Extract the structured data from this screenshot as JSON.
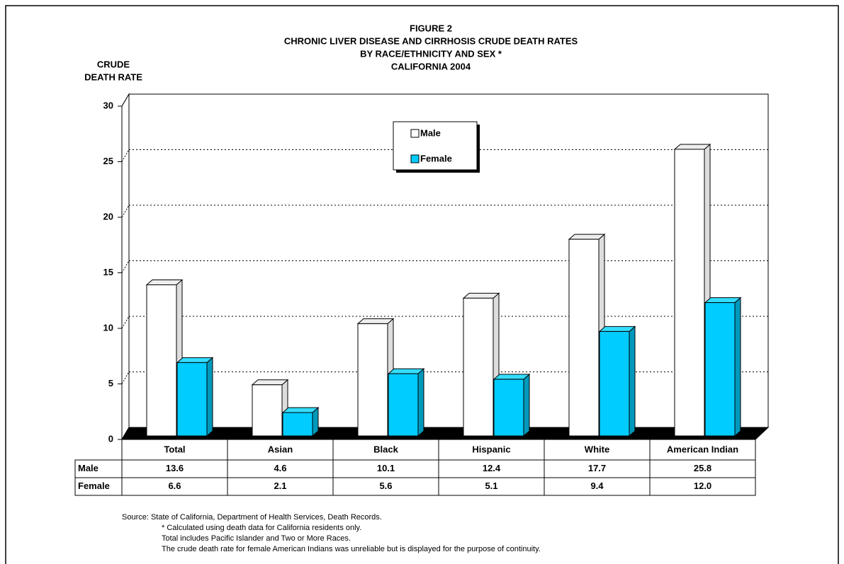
{
  "chart_data": {
    "type": "bar",
    "title": [
      "FIGURE 2",
      "CHRONIC LIVER DISEASE AND CIRRHOSIS CRUDE DEATH RATES",
      "BY RACE/ETHNICITY AND SEX *",
      "CALIFORNIA 2004"
    ],
    "ylabel": [
      "CRUDE",
      "DEATH RATE"
    ],
    "categories": [
      "Total",
      "Asian",
      "Black",
      "Hispanic",
      "White",
      "American Indian"
    ],
    "series": [
      {
        "name": "Male",
        "color": "#ffffff",
        "values": [
          13.6,
          4.6,
          10.1,
          12.4,
          17.7,
          25.8
        ],
        "value_labels": [
          "13.6",
          "4.6",
          "10.1",
          "12.4",
          "17.7",
          "25.8"
        ]
      },
      {
        "name": "Female",
        "color": "#00ccff",
        "values": [
          6.6,
          2.1,
          5.6,
          5.1,
          9.4,
          12.0
        ],
        "value_labels": [
          "6.6",
          "2.1",
          "5.6",
          "5.1",
          "9.4",
          "12.0"
        ]
      }
    ],
    "ylim": [
      0,
      30
    ],
    "yticks": [
      0,
      5,
      10,
      15,
      20,
      25,
      30
    ],
    "grid": true,
    "notes": [
      "Source:  State of California, Department of Health Services, Death Records.",
      "* Calculated using death data for California residents only.",
      "Total includes Pacific Islander and Two or More Races.",
      "The crude death rate for female American Indians was unreliable but is displayed for the purpose of continuity."
    ]
  }
}
